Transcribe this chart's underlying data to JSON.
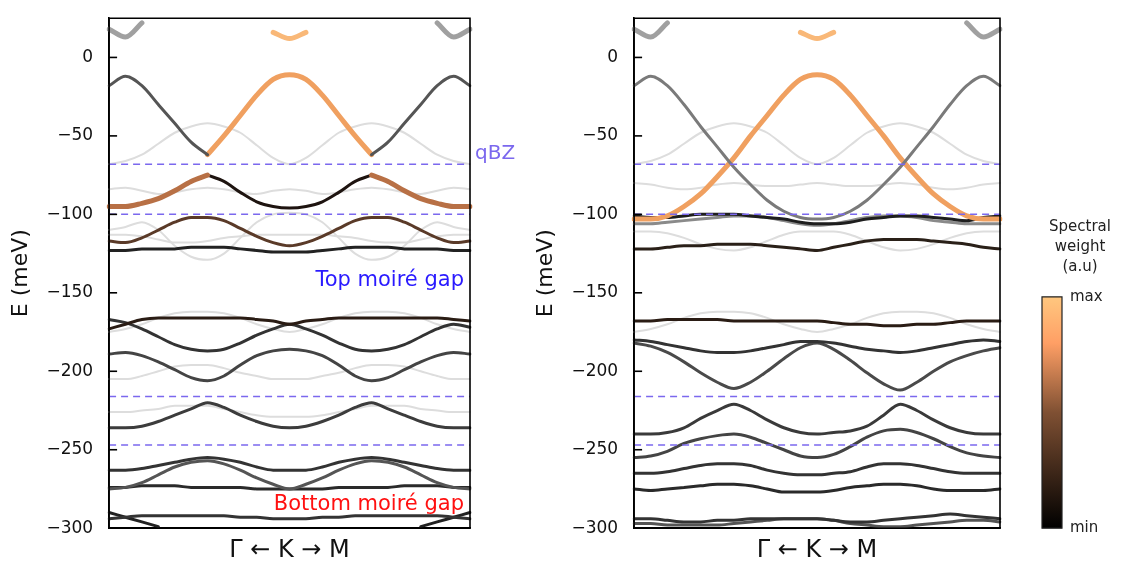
{
  "chart_data": [
    {
      "type": "line",
      "xlabel": "Γ ← K → M",
      "ylabel": "E (meV)",
      "tick_labels": "y",
      "marker": "none",
      "categories": [
        null,
        null,
        null,
        null,
        null,
        null,
        null,
        null,
        null,
        null,
        null,
        null,
        null,
        null,
        null,
        null,
        null,
        null,
        null,
        null,
        null,
        null,
        null
      ],
      "ylim": [
        -300,
        25
      ],
      "yticks": [
        0,
        -50,
        -100,
        -150,
        -200,
        -250,
        -300
      ],
      "ref_lines": [
        {
          "axis": "y",
          "value": -68,
          "label": "qBZ",
          "color": "#7b68ee",
          "line_style": "dashed"
        },
        {
          "axis": "y",
          "value": -100,
          "color": "#7b68ee",
          "line_style": "dashed"
        },
        {
          "axis": "y",
          "value": -216,
          "color": "#7b68ee",
          "line_style": "dashed"
        },
        {
          "axis": "y",
          "value": -247,
          "color": "#7b68ee",
          "line_style": "dashed"
        }
      ],
      "annotations": [
        "Top moiré gap",
        "Bottom moiré gap"
      ],
      "series": [
        {
          "color": "#dddddd",
          "values": [
            -68,
            -66,
            -62,
            -55,
            -48,
            -44,
            -42,
            -44,
            -48,
            -56,
            -64,
            -68,
            -64,
            -56,
            -48,
            -44,
            -42,
            -44,
            -48,
            -55,
            -62,
            -66,
            -68
          ]
        },
        {
          "color": "#dddddd",
          "values": [
            -84,
            -83,
            -85,
            -87,
            -86,
            -84,
            -83,
            -84,
            -86,
            -87,
            -85,
            -84,
            -85,
            -87,
            -86,
            -84,
            -83,
            -84,
            -86,
            -87,
            -85,
            -83,
            -84
          ]
        },
        {
          "color": "#dddddd",
          "values": [
            -110,
            -108,
            -105,
            -110,
            -120,
            -127,
            -129,
            -125,
            -115,
            -105,
            -100,
            -99,
            -100,
            -105,
            -115,
            -125,
            -129,
            -127,
            -120,
            -110,
            -105,
            -108,
            -110
          ]
        },
        {
          "color": "#dddddd",
          "values": [
            -113,
            -113,
            -114,
            -116,
            -118,
            -118,
            -117,
            -115,
            -114,
            -113,
            -113,
            -113,
            -113,
            -113,
            -114,
            -115,
            -117,
            -118,
            -118,
            -116,
            -114,
            -113,
            -113
          ]
        },
        {
          "color": "#dddddd",
          "values": [
            -175,
            -173,
            -170,
            -166,
            -163,
            -162,
            -162,
            -163,
            -166,
            -170,
            -173,
            -175,
            -173,
            -170,
            -166,
            -163,
            -162,
            -162,
            -163,
            -166,
            -170,
            -173,
            -175
          ]
        },
        {
          "color": "#dddddd",
          "values": [
            -205,
            -205,
            -203,
            -200,
            -197,
            -196,
            -196,
            -198,
            -201,
            -203,
            -205,
            -205,
            -205,
            -203,
            -201,
            -198,
            -196,
            -196,
            -197,
            -200,
            -203,
            -205,
            -205
          ]
        },
        {
          "color": "#dddddd",
          "values": [
            -226,
            -226,
            -225,
            -224,
            -222,
            -222,
            -222,
            -224,
            -226,
            -228,
            -229,
            -229,
            -229,
            -228,
            -226,
            -224,
            -222,
            -222,
            -222,
            -224,
            -225,
            -226,
            -226
          ]
        },
        {
          "color": "#f9b878",
          "values": [
            null,
            null,
            null,
            null,
            null,
            null,
            null,
            null,
            null,
            null,
            16,
            12,
            16,
            null,
            null,
            null,
            null,
            null,
            null,
            null,
            null,
            null,
            null
          ]
        },
        {
          "color": "#a0a0a0",
          "values": [
            18,
            13,
            22,
            null,
            null,
            null,
            null,
            null,
            null,
            null,
            null,
            null,
            null,
            null,
            null,
            null,
            null,
            null,
            null,
            null,
            22,
            13,
            18
          ]
        },
        {
          "color": "#555555",
          "values": [
            -18,
            -12,
            -18,
            -30,
            -42,
            -54,
            -62,
            null,
            null,
            null,
            null,
            null,
            null,
            null,
            null,
            null,
            -62,
            -54,
            -42,
            -30,
            -18,
            -12,
            -18
          ]
        },
        {
          "color": "#f0a060",
          "values": [
            null,
            null,
            null,
            null,
            null,
            null,
            -62,
            -50,
            -37,
            -24,
            -14,
            -11,
            -14,
            -24,
            -37,
            -50,
            -62,
            null,
            null,
            null,
            null,
            null,
            null
          ]
        },
        {
          "color": "#b87045",
          "values": [
            -95,
            -95,
            -93,
            -90,
            -85,
            -79,
            -75,
            null,
            null,
            null,
            null,
            null,
            null,
            null,
            null,
            null,
            -75,
            -79,
            -85,
            -90,
            -93,
            -95,
            -95
          ]
        },
        {
          "color": "#1e1410",
          "values": [
            null,
            null,
            null,
            null,
            null,
            null,
            -75,
            -79,
            -86,
            -92,
            -95,
            -96,
            -95,
            -92,
            -86,
            -79,
            -75,
            null,
            null,
            null,
            null,
            null,
            null
          ]
        },
        {
          "color": "#5a3a28",
          "values": [
            -117,
            -118,
            -115,
            -110,
            -105,
            -102,
            -102,
            -104,
            -109,
            -114,
            -118,
            -120,
            -118,
            -114,
            -109,
            -104,
            -102,
            -102,
            -105,
            -110,
            -115,
            -118,
            -117
          ]
        },
        {
          "color": "#222222",
          "values": [
            -123,
            -123,
            -122,
            -122,
            -122,
            -121,
            -121,
            -121,
            -122,
            -123,
            -124,
            -124,
            -124,
            -123,
            -122,
            -121,
            -121,
            -121,
            -122,
            -122,
            -122,
            -123,
            -123
          ]
        },
        {
          "color": "#2a1c14",
          "values": [
            -173,
            -170,
            -167,
            -166,
            -166,
            -166,
            -166,
            -166,
            -166,
            -167,
            -168,
            -170,
            -168,
            -167,
            -166,
            -166,
            -166,
            -166,
            -166,
            -166,
            -166,
            -167,
            -168
          ]
        },
        {
          "color": "#333333",
          "values": [
            -167,
            -169,
            -173,
            -178,
            -183,
            -186,
            -187,
            -186,
            -182,
            -177,
            -173,
            -170,
            -173,
            -177,
            -182,
            -186,
            -187,
            -186,
            -183,
            -178,
            -173,
            -170,
            -172
          ]
        },
        {
          "color": "#444444",
          "values": [
            -189,
            -188,
            -190,
            -194,
            -199,
            -204,
            -206,
            -203,
            -196,
            -190,
            -187,
            -186,
            -187,
            -190,
            -196,
            -203,
            -206,
            -204,
            -199,
            -194,
            -190,
            -188,
            -189
          ]
        },
        {
          "color": "#3c3c3c",
          "values": [
            -236,
            -236,
            -235,
            -232,
            -228,
            -224,
            -220,
            -223,
            -228,
            -232,
            -235,
            -236,
            -235,
            -232,
            -228,
            -223,
            -220,
            -224,
            -228,
            -232,
            -235,
            -236,
            -236
          ]
        },
        {
          "color": "#333333",
          "values": [
            -263,
            -263,
            -262,
            -260,
            -258,
            -256,
            -255,
            -256,
            -258,
            -261,
            -263,
            -263,
            -263,
            -261,
            -258,
            -256,
            -255,
            -256,
            -258,
            -260,
            -262,
            -263,
            -263
          ]
        },
        {
          "color": "#555555",
          "values": [
            -275,
            -274,
            -271,
            -266,
            -261,
            -258,
            -257,
            -259,
            -263,
            -268,
            -272,
            -275,
            -272,
            -268,
            -263,
            -259,
            -257,
            -258,
            -261,
            -266,
            -271,
            -274,
            -275
          ]
        },
        {
          "color": "#2a2a2a",
          "values": [
            -274,
            -274,
            -273,
            -273,
            -273,
            -274,
            -274,
            -274,
            -274,
            -275,
            -275,
            -275,
            -275,
            -275,
            -274,
            -274,
            -274,
            -274,
            -273,
            -273,
            -273,
            -274,
            -274
          ]
        },
        {
          "color": "#333333",
          "values": [
            -294,
            -293,
            -292,
            -292,
            -292,
            -292,
            -292,
            -292,
            -293,
            -293,
            -294,
            -294,
            -294,
            -293,
            -293,
            -292,
            -292,
            -292,
            -292,
            -292,
            -292,
            -293,
            -294
          ]
        },
        {
          "color": "#222222",
          "values": [
            -290,
            -293,
            -296,
            -299,
            null,
            null,
            null,
            null,
            null,
            null,
            null,
            null,
            null,
            null,
            null,
            null,
            null,
            null,
            null,
            -299,
            -296,
            -293,
            -290
          ]
        }
      ]
    },
    {
      "type": "line",
      "xlabel": "Γ ← K → M",
      "ylabel": "E (meV)",
      "tick_labels": "y",
      "marker": "none",
      "categories": [
        null,
        null,
        null,
        null,
        null,
        null,
        null,
        null,
        null,
        null,
        null,
        null,
        null,
        null,
        null,
        null,
        null,
        null,
        null,
        null,
        null,
        null,
        null
      ],
      "ylim": [
        -300,
        25
      ],
      "yticks": [
        0,
        -50,
        -100,
        -150,
        -200,
        -250,
        -300
      ],
      "clabel": "Spectral weight (a.u)",
      "clim": [
        0,
        1
      ],
      "cticks": [
        {
          "value": 0,
          "label": "min"
        },
        {
          "value": 1,
          "label": "max"
        }
      ],
      "ref_lines": [
        {
          "axis": "y",
          "value": -68,
          "color": "#7b68ee",
          "line_style": "dashed"
        },
        {
          "axis": "y",
          "value": -100,
          "color": "#7b68ee",
          "line_style": "dashed"
        },
        {
          "axis": "y",
          "value": -216,
          "color": "#7b68ee",
          "line_style": "dashed"
        },
        {
          "axis": "y",
          "value": -247,
          "color": "#7b68ee",
          "line_style": "dashed"
        }
      ],
      "series": [
        {
          "color": "#dddddd",
          "values": [
            -68,
            -66,
            -62,
            -55,
            -48,
            -44,
            -42,
            -44,
            -48,
            -56,
            -64,
            -68,
            -64,
            -56,
            -48,
            -44,
            -42,
            -44,
            -48,
            -55,
            -62,
            -66,
            -68
          ]
        },
        {
          "color": "#dddddd",
          "values": [
            -80,
            -81,
            -83,
            -84,
            -83,
            -81,
            -80,
            -81,
            -82,
            -82,
            -81,
            -80,
            -81,
            -82,
            -82,
            -81,
            -80,
            -81,
            -83,
            -84,
            -83,
            -81,
            -80
          ]
        },
        {
          "color": "#dddddd",
          "values": [
            -111,
            -111,
            -112,
            -115,
            -119,
            -122,
            -123,
            -121,
            -117,
            -113,
            -111,
            -111,
            -111,
            -113,
            -117,
            -121,
            -123,
            -122,
            -119,
            -115,
            -112,
            -111,
            -111
          ]
        },
        {
          "color": "#dddddd",
          "values": [
            -175,
            -173,
            -170,
            -166,
            -163,
            -162,
            -162,
            -163,
            -166,
            -170,
            -173,
            -175,
            -173,
            -170,
            -166,
            -163,
            -162,
            -162,
            -163,
            -166,
            -170,
            -173,
            -175
          ]
        },
        {
          "color": "#f9b878",
          "values": [
            null,
            null,
            null,
            null,
            null,
            null,
            null,
            null,
            null,
            null,
            16,
            12,
            16,
            null,
            null,
            null,
            null,
            null,
            null,
            null,
            null,
            null,
            null
          ]
        },
        {
          "color": "#a0a0a0",
          "values": [
            18,
            13,
            22,
            null,
            null,
            null,
            null,
            null,
            null,
            null,
            null,
            null,
            null,
            null,
            null,
            null,
            null,
            null,
            null,
            null,
            22,
            13,
            18
          ]
        },
        {
          "color": "#7a7a7a",
          "values": [
            -18,
            -12,
            -18,
            -30,
            -44,
            -57,
            -70,
            -81,
            -91,
            -98,
            -102,
            -103,
            -102,
            -98,
            -91,
            -81,
            -70,
            -57,
            -44,
            -30,
            -18,
            -12,
            -18
          ]
        },
        {
          "color": "#f0a060",
          "values": [
            -103,
            -103,
            -101,
            -95,
            -87,
            -76,
            -64,
            -50,
            -37,
            -24,
            -14,
            -11,
            -14,
            -24,
            -37,
            -50,
            -64,
            -76,
            -87,
            -95,
            -101,
            -103,
            -103
          ]
        },
        {
          "color": "#1e1e1e",
          "values": [
            -101,
            -102,
            -102,
            -101,
            -100,
            -100,
            -100,
            -101,
            -102,
            -103,
            -105,
            -106,
            -106,
            -105,
            -103,
            -102,
            -101,
            -101,
            -102,
            -103,
            -104,
            -102,
            -101
          ]
        },
        {
          "color": "#8a8a8a",
          "values": [
            -106,
            -106,
            -105,
            -104,
            -103,
            -102,
            -101,
            -101,
            -102,
            -104,
            -106,
            -107,
            -106,
            -104,
            -102,
            -101,
            -101,
            -102,
            -104,
            -105,
            -106,
            -106,
            -106
          ]
        },
        {
          "color": "#2a2018",
          "values": [
            -122,
            -122,
            -121,
            -120,
            -120,
            -119,
            -119,
            -119,
            -120,
            -121,
            -122,
            -123,
            -121,
            -119,
            -117,
            -116,
            -116,
            -116,
            -117,
            -118,
            -119,
            -121,
            -122
          ]
        },
        {
          "color": "#2a1c14",
          "values": [
            -168,
            -168,
            -167,
            -167,
            -167,
            -167,
            -168,
            -168,
            -168,
            -168,
            -168,
            -168,
            -169,
            -170,
            -170,
            -171,
            -171,
            -170,
            -170,
            -169,
            -168,
            -168,
            -168
          ]
        },
        {
          "color": "#333333",
          "values": [
            -180,
            -181,
            -183,
            -185,
            -187,
            -188,
            -188,
            -187,
            -185,
            -183,
            -181,
            -181,
            -182,
            -184,
            -186,
            -187,
            -188,
            -187,
            -185,
            -183,
            -181,
            -180,
            -181
          ]
        },
        {
          "color": "#4a4a4a",
          "values": [
            -182,
            -184,
            -188,
            -194,
            -201,
            -207,
            -211,
            -207,
            -200,
            -192,
            -185,
            -182,
            -186,
            -193,
            -201,
            -208,
            -212,
            -207,
            -200,
            -194,
            -190,
            -187,
            -185
          ]
        },
        {
          "color": "#3a3a3a",
          "values": [
            -240,
            -240,
            -239,
            -236,
            -230,
            -225,
            -221,
            -225,
            -231,
            -236,
            -239,
            -240,
            -239,
            -238,
            -235,
            -228,
            -221,
            -225,
            -231,
            -236,
            -239,
            -240,
            -240
          ]
        },
        {
          "color": "#444444",
          "values": [
            -255,
            -254,
            -251,
            -246,
            -243,
            -241,
            -240,
            -242,
            -246,
            -250,
            -254,
            -255,
            -253,
            -248,
            -242,
            -238,
            -237,
            -239,
            -243,
            -248,
            -252,
            -254,
            -255
          ]
        },
        {
          "color": "#333333",
          "values": [
            -265,
            -265,
            -264,
            -262,
            -260,
            -259,
            -259,
            -260,
            -263,
            -265,
            -266,
            -266,
            -265,
            -264,
            -261,
            -259,
            -259,
            -260,
            -262,
            -264,
            -265,
            -265,
            -265
          ]
        },
        {
          "color": "#2a2a2a",
          "values": [
            -275,
            -276,
            -275,
            -274,
            -273,
            -272,
            -272,
            -273,
            -275,
            -277,
            -277,
            -277,
            -276,
            -274,
            -273,
            -272,
            -272,
            -273,
            -275,
            -276,
            -276,
            -276,
            -275
          ]
        },
        {
          "color": "#333333",
          "values": [
            -294,
            -294,
            -295,
            -296,
            -296,
            -295,
            -295,
            -294,
            -294,
            -294,
            -294,
            -294,
            -295,
            -296,
            -296,
            -295,
            -294,
            -293,
            -292,
            -291,
            -292,
            -293,
            -294
          ]
        },
        {
          "color": "#555555",
          "values": [
            -297,
            -297,
            -298,
            -298,
            -298,
            -298,
            -297,
            -296,
            -295,
            -294,
            -294,
            -294,
            -295,
            -297,
            -298,
            -299,
            -299,
            -298,
            -297,
            -296,
            -295,
            -295,
            -296
          ]
        }
      ]
    }
  ]
}
